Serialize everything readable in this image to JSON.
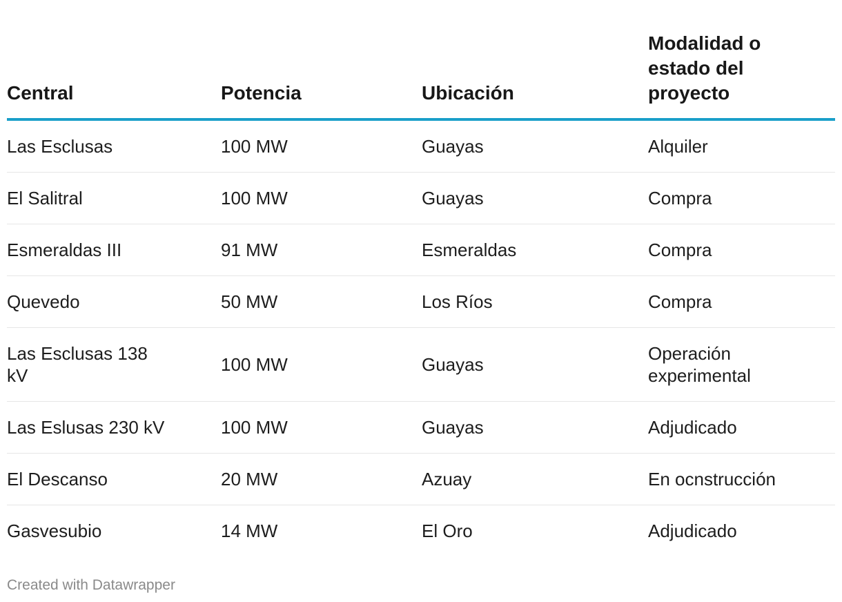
{
  "chart_data": {
    "type": "table",
    "columns": [
      "Central",
      "Potencia",
      "Ubicación",
      "Modalidad o estado del proyecto"
    ],
    "rows": [
      [
        "Las Esclusas",
        "100 MW",
        "Guayas",
        "Alquiler"
      ],
      [
        "El Salitral",
        "100 MW",
        "Guayas",
        "Compra"
      ],
      [
        "Esmeraldas III",
        "91 MW",
        "Esmeraldas",
        "Compra"
      ],
      [
        "Quevedo",
        "50 MW",
        "Los Ríos",
        "Compra"
      ],
      [
        "Las Esclusas 138 kV",
        "100 MW",
        "Guayas",
        "Operación experimental"
      ],
      [
        "Las Eslusas 230 kV",
        "100 MW",
        "Guayas",
        "Adjudicado"
      ],
      [
        "El Descanso",
        "20 MW",
        "Azuay",
        "En ocnstrucción"
      ],
      [
        "Gasvesubio",
        "14 MW",
        "El Oro",
        "Adjudicado"
      ]
    ],
    "header_rule_color": "#1a9fc9"
  },
  "footer": {
    "credit": "Created with Datawrapper"
  }
}
